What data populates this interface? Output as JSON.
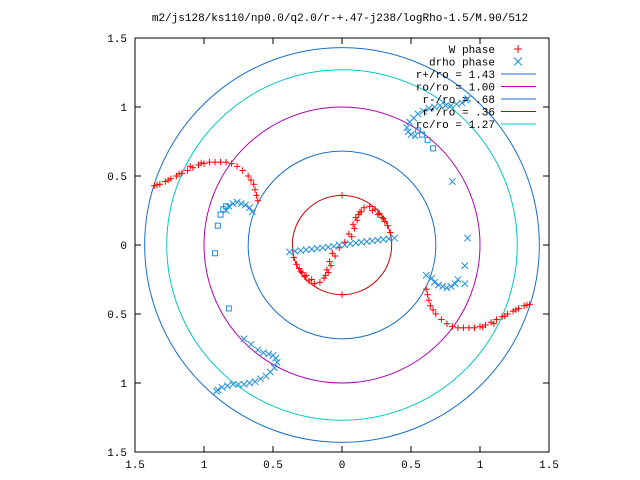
{
  "title": "m2/js128/ks110/np0.0/q2.0/r-+.47-j238/logRho-1.5/M.90/512",
  "chart_data": {
    "type": "scatter",
    "title": "m2/js128/ks110/np0.0/q2.0/r-+.47-j238/logRho-1.5/M.90/512",
    "xlim": [
      -1.5,
      1.5
    ],
    "ylim": [
      -1.5,
      1.5
    ],
    "x_tick_labels": [
      "1.5",
      "1",
      "0.5",
      "0",
      "0.5",
      "1",
      "1.5"
    ],
    "y_tick_labels": [
      "1.5",
      "1",
      "0.5",
      "0",
      "0.5",
      "1",
      "1.5"
    ],
    "grid": false,
    "legend_position": "top-right",
    "colors": {
      "w_phase": "#ff0000",
      "drho_phase": "#1f8fe0",
      "r_plus": "#1a6fc8",
      "r_o": "#b000b0",
      "r_minus": "#1a6fc8",
      "r_star": "#cc0000",
      "r_c": "#00c8c8"
    },
    "legend": [
      {
        "label": "W phase",
        "kind": "plus",
        "color": "#ff0000"
      },
      {
        "label": "drho phase",
        "kind": "cross",
        "color": "#1f8fe0"
      },
      {
        "label": "r+/ro = 1.43",
        "kind": "line",
        "color": "#1a6fc8"
      },
      {
        "label": "ro/ro = 1.00",
        "kind": "line",
        "color": "#b000b0"
      },
      {
        "label": "r-/ro = .68",
        "kind": "line",
        "color": "#1a6fc8"
      },
      {
        "label": "r*/ro = .36",
        "kind": "line",
        "color": "#cc0000"
      },
      {
        "label": "rc/ro = 1.27",
        "kind": "line",
        "color": "#00c8c8"
      }
    ],
    "circles": [
      {
        "name": "r+/ro",
        "r": 1.43,
        "color": "#1a6fc8"
      },
      {
        "name": "ro/ro",
        "r": 1.0,
        "color": "#b000b0"
      },
      {
        "name": "r-/ro",
        "r": 0.68,
        "color": "#1a6fc8"
      },
      {
        "name": "r*/ro",
        "r": 0.36,
        "color": "#cc0000"
      },
      {
        "name": "rc/ro",
        "r": 1.27,
        "color": "#00c8c8"
      }
    ],
    "series": [
      {
        "name": "W phase",
        "marker": "plus",
        "color": "#ff0000",
        "points": [
          [
            0.0,
            0.36
          ],
          [
            0.0,
            -0.36
          ],
          [
            0.02,
            0.02
          ],
          [
            0.05,
            0.08
          ],
          [
            0.08,
            0.15
          ],
          [
            0.1,
            0.2
          ],
          [
            0.13,
            0.24
          ],
          [
            0.16,
            0.27
          ],
          [
            0.2,
            0.28
          ],
          [
            0.24,
            0.26
          ],
          [
            0.27,
            0.23
          ],
          [
            0.3,
            0.19
          ],
          [
            0.33,
            0.14
          ],
          [
            0.35,
            0.09
          ],
          [
            -0.02,
            -0.02
          ],
          [
            -0.05,
            -0.08
          ],
          [
            -0.08,
            -0.15
          ],
          [
            -0.1,
            -0.2
          ],
          [
            -0.13,
            -0.24
          ],
          [
            -0.16,
            -0.27
          ],
          [
            -0.2,
            -0.28
          ],
          [
            -0.24,
            -0.26
          ],
          [
            -0.27,
            -0.23
          ],
          [
            -0.3,
            -0.19
          ],
          [
            -0.33,
            -0.14
          ],
          [
            -0.35,
            -0.09
          ],
          [
            0.14,
            0.24
          ],
          [
            0.12,
            0.22
          ],
          [
            0.11,
            0.18
          ],
          [
            0.09,
            0.12
          ],
          [
            0.07,
            0.06
          ],
          [
            -0.07,
            -0.06
          ],
          [
            -0.09,
            -0.12
          ],
          [
            -0.11,
            -0.18
          ],
          [
            -0.12,
            -0.22
          ],
          [
            0.22,
            0.25
          ],
          [
            0.26,
            0.22
          ],
          [
            0.29,
            0.2
          ],
          [
            0.31,
            0.17
          ],
          [
            -0.22,
            -0.25
          ],
          [
            -0.26,
            -0.22
          ],
          [
            -0.29,
            -0.2
          ],
          [
            -0.31,
            -0.17
          ],
          [
            -0.68,
            0.5
          ],
          [
            -0.72,
            0.54
          ],
          [
            -0.76,
            0.57
          ],
          [
            -0.8,
            0.59
          ],
          [
            -0.84,
            0.6
          ],
          [
            -0.88,
            0.6
          ],
          [
            -0.92,
            0.6
          ],
          [
            -0.96,
            0.6
          ],
          [
            -1.0,
            0.59
          ],
          [
            -1.04,
            0.58
          ],
          [
            -1.08,
            0.56
          ],
          [
            -1.12,
            0.54
          ],
          [
            -1.16,
            0.52
          ],
          [
            -1.2,
            0.5
          ],
          [
            -1.24,
            0.48
          ],
          [
            -1.28,
            0.46
          ],
          [
            -1.32,
            0.44
          ],
          [
            -1.36,
            0.43
          ],
          [
            -0.62,
            0.36
          ],
          [
            -0.63,
            0.4
          ],
          [
            -0.64,
            0.44
          ],
          [
            -0.66,
            0.47
          ],
          [
            -0.61,
            0.32
          ],
          [
            -1.02,
            0.595
          ],
          [
            -1.1,
            0.57
          ],
          [
            -1.18,
            0.515
          ],
          [
            -1.26,
            0.47
          ],
          [
            -1.34,
            0.435
          ],
          [
            0.68,
            -0.5
          ],
          [
            0.72,
            -0.54
          ],
          [
            0.76,
            -0.57
          ],
          [
            0.8,
            -0.59
          ],
          [
            0.84,
            -0.6
          ],
          [
            0.88,
            -0.6
          ],
          [
            0.92,
            -0.6
          ],
          [
            0.96,
            -0.6
          ],
          [
            1.0,
            -0.59
          ],
          [
            1.04,
            -0.58
          ],
          [
            1.08,
            -0.56
          ],
          [
            1.12,
            -0.54
          ],
          [
            1.16,
            -0.52
          ],
          [
            1.2,
            -0.5
          ],
          [
            1.24,
            -0.48
          ],
          [
            1.28,
            -0.46
          ],
          [
            1.32,
            -0.44
          ],
          [
            1.36,
            -0.43
          ],
          [
            0.62,
            -0.36
          ],
          [
            0.63,
            -0.4
          ],
          [
            0.64,
            -0.44
          ],
          [
            0.66,
            -0.47
          ],
          [
            0.61,
            -0.32
          ],
          [
            1.02,
            -0.595
          ],
          [
            1.1,
            -0.57
          ],
          [
            1.18,
            -0.515
          ],
          [
            1.26,
            -0.47
          ],
          [
            1.34,
            -0.435
          ]
        ]
      },
      {
        "name": "drho phase",
        "marker": "cross",
        "color": "#1f8fe0",
        "points": [
          [
            -0.38,
            -0.05
          ],
          [
            -0.34,
            -0.045
          ],
          [
            -0.3,
            -0.04
          ],
          [
            -0.26,
            -0.035
          ],
          [
            -0.22,
            -0.03
          ],
          [
            -0.18,
            -0.025
          ],
          [
            -0.14,
            -0.02
          ],
          [
            -0.1,
            -0.015
          ],
          [
            -0.06,
            -0.01
          ],
          [
            -0.02,
            0.0
          ],
          [
            0.02,
            0.0
          ],
          [
            0.06,
            0.01
          ],
          [
            0.1,
            0.015
          ],
          [
            0.14,
            0.02
          ],
          [
            0.18,
            0.025
          ],
          [
            0.22,
            0.03
          ],
          [
            0.26,
            0.035
          ],
          [
            0.3,
            0.04
          ],
          [
            0.34,
            0.045
          ],
          [
            0.38,
            0.05
          ],
          [
            0.47,
            0.85
          ],
          [
            0.49,
            0.89
          ],
          [
            0.52,
            0.92
          ],
          [
            0.55,
            0.95
          ],
          [
            0.59,
            0.97
          ],
          [
            0.63,
            0.99
          ],
          [
            0.67,
            1.0
          ],
          [
            0.71,
            1.01
          ],
          [
            0.75,
            1.01
          ],
          [
            0.79,
            1.01
          ],
          [
            0.83,
            1.02
          ],
          [
            0.87,
            1.03
          ],
          [
            0.9,
            1.05
          ],
          [
            0.91,
            1.06
          ],
          [
            0.48,
            0.82
          ],
          [
            0.5,
            0.8
          ],
          [
            0.53,
            0.79
          ],
          [
            -0.47,
            -0.85
          ],
          [
            -0.49,
            -0.89
          ],
          [
            -0.52,
            -0.92
          ],
          [
            -0.55,
            -0.95
          ],
          [
            -0.59,
            -0.97
          ],
          [
            -0.63,
            -0.99
          ],
          [
            -0.67,
            -1.0
          ],
          [
            -0.71,
            -1.01
          ],
          [
            -0.75,
            -1.01
          ],
          [
            -0.79,
            -1.01
          ],
          [
            -0.83,
            -1.02
          ],
          [
            -0.87,
            -1.03
          ],
          [
            -0.9,
            -1.05
          ],
          [
            -0.91,
            -1.06
          ],
          [
            -0.48,
            -0.82
          ],
          [
            -0.5,
            -0.8
          ],
          [
            -0.53,
            -0.79
          ],
          [
            -0.57,
            -0.78
          ],
          [
            -0.61,
            -0.76
          ],
          [
            -0.66,
            -0.72
          ],
          [
            -0.71,
            -0.68
          ],
          [
            -0.65,
            0.24
          ],
          [
            -0.67,
            0.27
          ],
          [
            -0.7,
            0.29
          ],
          [
            -0.73,
            0.3
          ],
          [
            -0.76,
            0.31
          ],
          [
            -0.79,
            0.3
          ],
          [
            -0.82,
            0.28
          ],
          [
            -0.84,
            0.25
          ],
          [
            0.65,
            -0.24
          ],
          [
            0.67,
            -0.27
          ],
          [
            0.7,
            -0.29
          ],
          [
            0.73,
            -0.3
          ],
          [
            0.76,
            -0.31
          ],
          [
            0.79,
            -0.3
          ],
          [
            0.82,
            -0.28
          ],
          [
            0.84,
            -0.25
          ],
          [
            0.8,
            0.46
          ],
          [
            0.91,
            0.05
          ],
          [
            0.89,
            -0.15
          ],
          [
            0.89,
            -0.28
          ],
          [
            0.61,
            -0.22
          ]
        ]
      },
      {
        "name": "drho phase (sparse)",
        "marker": "square",
        "color": "#1f8fe0",
        "points": [
          [
            0.62,
            0.76
          ],
          [
            0.66,
            0.7
          ],
          [
            0.55,
            0.83
          ],
          [
            0.58,
            0.8
          ],
          [
            -0.9,
            0.14
          ],
          [
            -0.92,
            -0.06
          ],
          [
            -0.82,
            -0.46
          ],
          [
            -0.88,
            0.22
          ],
          [
            -0.86,
            0.26
          ],
          [
            -0.84,
            0.28
          ]
        ]
      }
    ]
  }
}
